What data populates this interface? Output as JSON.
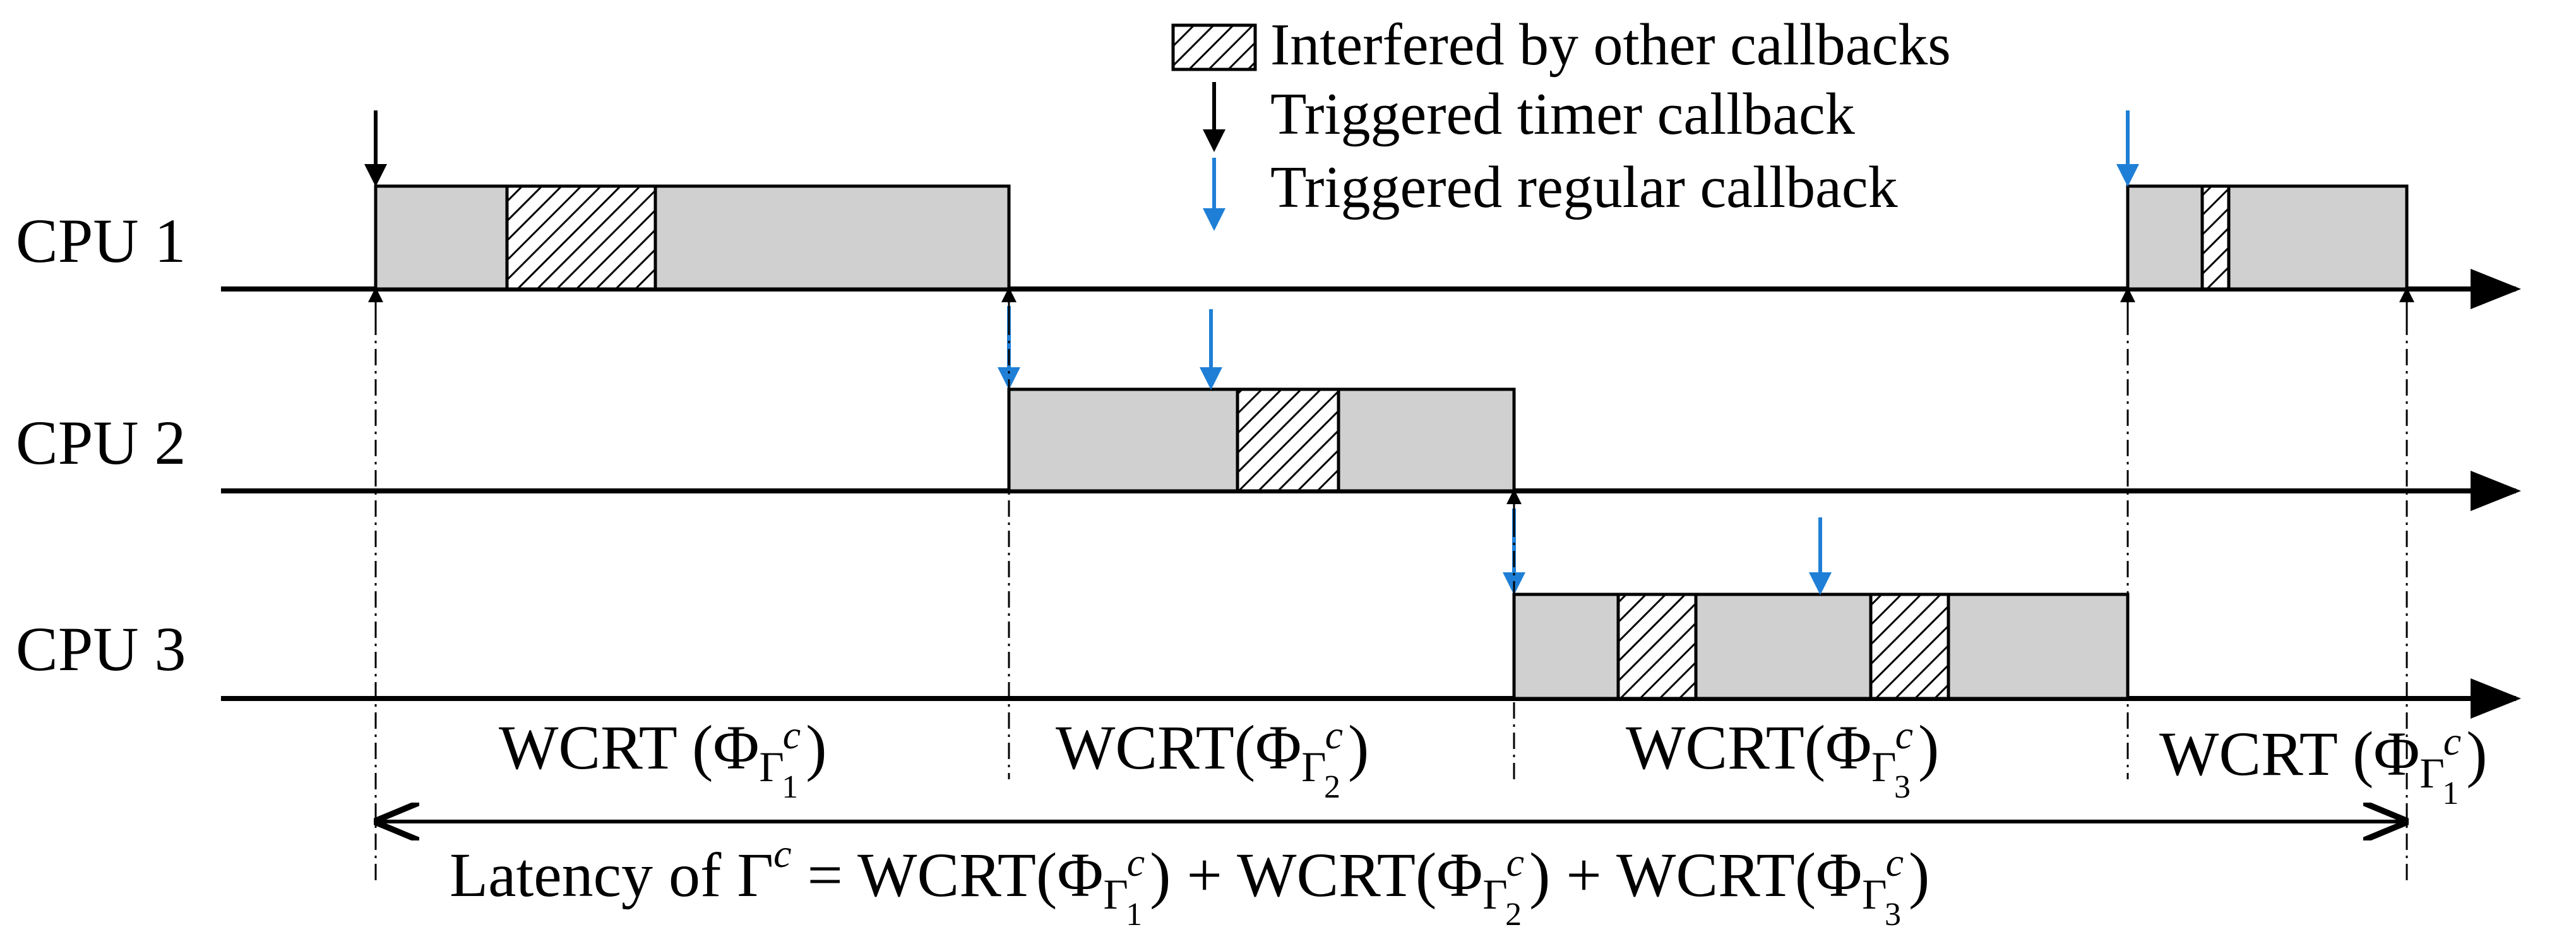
{
  "legend": {
    "interfered": "Interfered by other callbacks",
    "timer": "Triggered timer callback",
    "regular": "Triggered regular callback"
  },
  "cpus": [
    "CPU 1",
    "CPU 2",
    "CPU 3"
  ],
  "wcrt": {
    "prefix": "WCRT",
    "phi": "Φ",
    "gamma": "Γ",
    "c": "c",
    "segments": [
      {
        "index": "1",
        "open": " (",
        "close": ")"
      },
      {
        "index": "2",
        "open": "(",
        "close": ")"
      },
      {
        "index": "3",
        "open": "(",
        "close": ")"
      },
      {
        "index": "1",
        "open": " (",
        "close": ")"
      }
    ]
  },
  "latency": {
    "prefix": "Latency of ",
    "equals": " = ",
    "plus": " + "
  },
  "colors": {
    "block_fill": "#d0d0d0",
    "regular_arrow": "#1f7fd6",
    "timer_arrow": "#000000"
  }
}
